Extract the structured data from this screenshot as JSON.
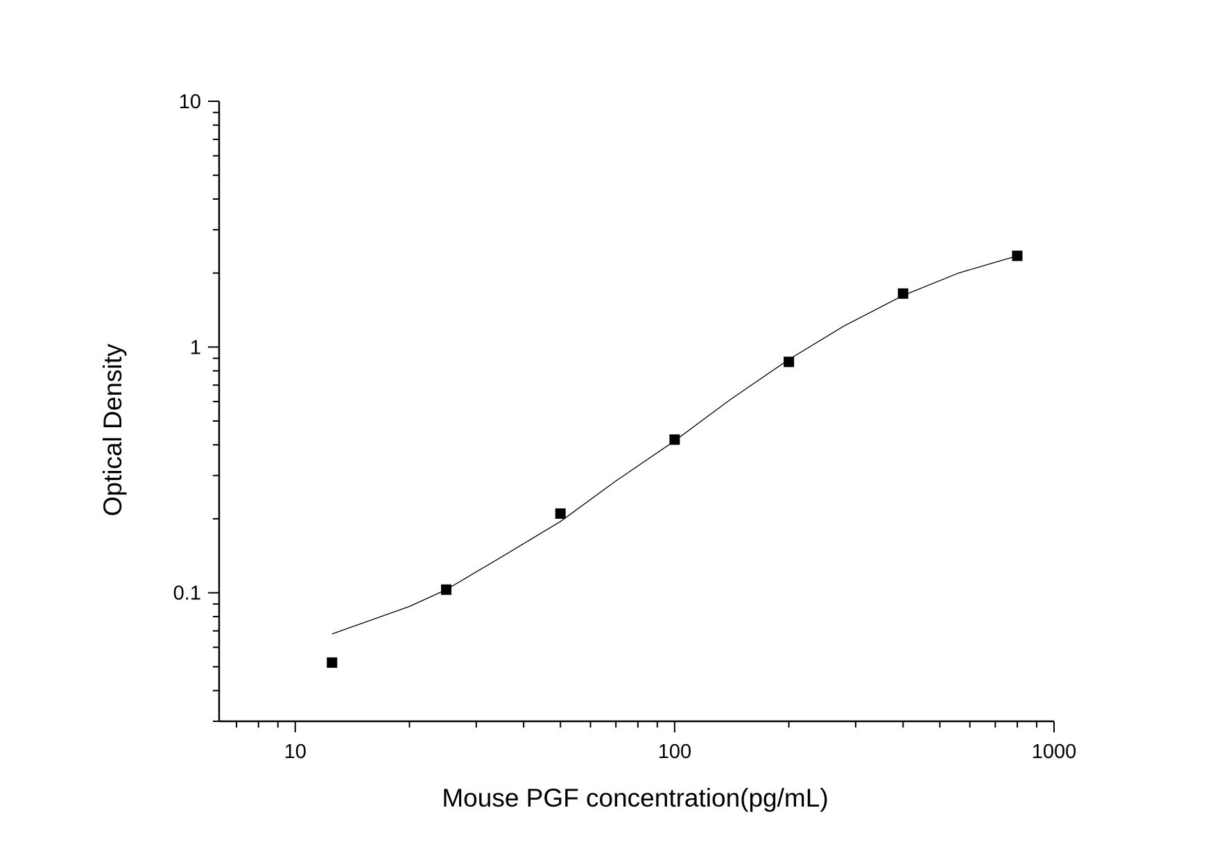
{
  "chart_data": {
    "type": "scatter",
    "title": "",
    "xlabel": "Mouse PGF concentration(pg/mL)",
    "ylabel": "Optical Density",
    "x_scale": "log",
    "y_scale": "log",
    "xlim": [
      6.3,
      1000
    ],
    "ylim": [
      0.03,
      10
    ],
    "x_ticks": [
      10,
      100,
      1000
    ],
    "x_tick_labels": [
      "10",
      "100",
      "1000"
    ],
    "y_ticks": [
      0.1,
      1,
      10
    ],
    "y_tick_labels": [
      "0.1",
      "1",
      "10"
    ],
    "grid": false,
    "legend": "none",
    "series": [
      {
        "kind": "points",
        "marker": "square",
        "color": "#000000",
        "x": [
          12.5,
          25,
          50,
          100,
          200,
          400,
          800
        ],
        "y": [
          0.052,
          0.103,
          0.21,
          0.42,
          0.87,
          1.65,
          2.35
        ]
      },
      {
        "kind": "fitted-curve",
        "color": "#000000",
        "x": [
          12.5,
          20,
          25,
          35,
          50,
          70,
          100,
          140,
          200,
          280,
          400,
          560,
          800
        ],
        "y": [
          0.068,
          0.088,
          0.103,
          0.14,
          0.195,
          0.285,
          0.415,
          0.61,
          0.89,
          1.22,
          1.62,
          2.0,
          2.35
        ]
      }
    ]
  }
}
